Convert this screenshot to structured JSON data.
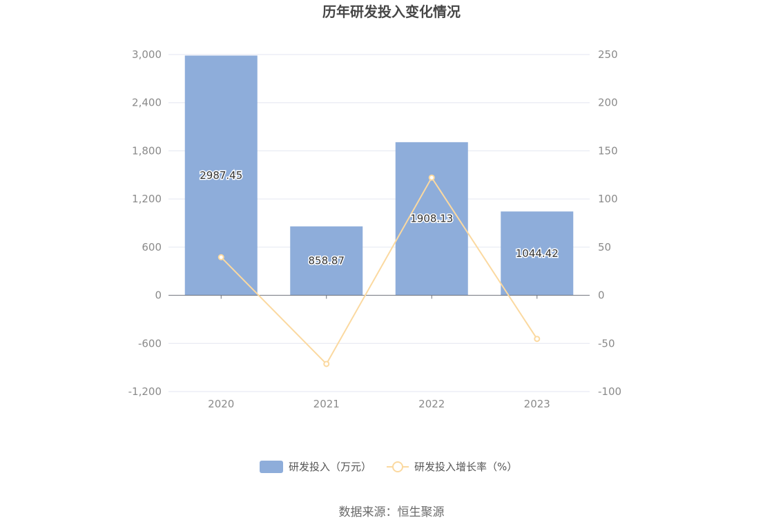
{
  "chart_data": {
    "type": "bar",
    "title": "历年研发投入变化情况",
    "categories": [
      "2020",
      "2021",
      "2022",
      "2023"
    ],
    "series": [
      {
        "name": "研发投入（万元）",
        "type": "bar",
        "axis": "left",
        "values": [
          2987.45,
          858.87,
          1908.13,
          1044.42
        ],
        "labels": [
          "2987.45",
          "858.87",
          "1908.13",
          "1044.42"
        ]
      },
      {
        "name": "研发投入增长率（%）",
        "type": "line",
        "axis": "right",
        "values": [
          39.5,
          -71.3,
          122.2,
          -45.3
        ]
      }
    ],
    "y_left": {
      "range": [
        -1200,
        3000
      ],
      "ticks": [
        3000,
        2400,
        1800,
        1200,
        600,
        0,
        -600,
        -1200
      ],
      "tick_labels": [
        "3,000",
        "2,400",
        "1,800",
        "1,200",
        "600",
        "0",
        "-600",
        "-1,200"
      ]
    },
    "y_right": {
      "range": [
        -100,
        250
      ],
      "ticks": [
        250,
        200,
        150,
        100,
        50,
        0,
        -50,
        -100
      ],
      "tick_labels": [
        "250",
        "200",
        "150",
        "100",
        "50",
        "0",
        "-50",
        "-100"
      ]
    },
    "grid": true,
    "legend_position": "bottom-center",
    "colors": {
      "bar": "#8eadda",
      "line": "#fbd9a0",
      "grid": "#e3e6f0",
      "axis": "#6e7079"
    }
  },
  "source": "数据来源：恒生聚源"
}
